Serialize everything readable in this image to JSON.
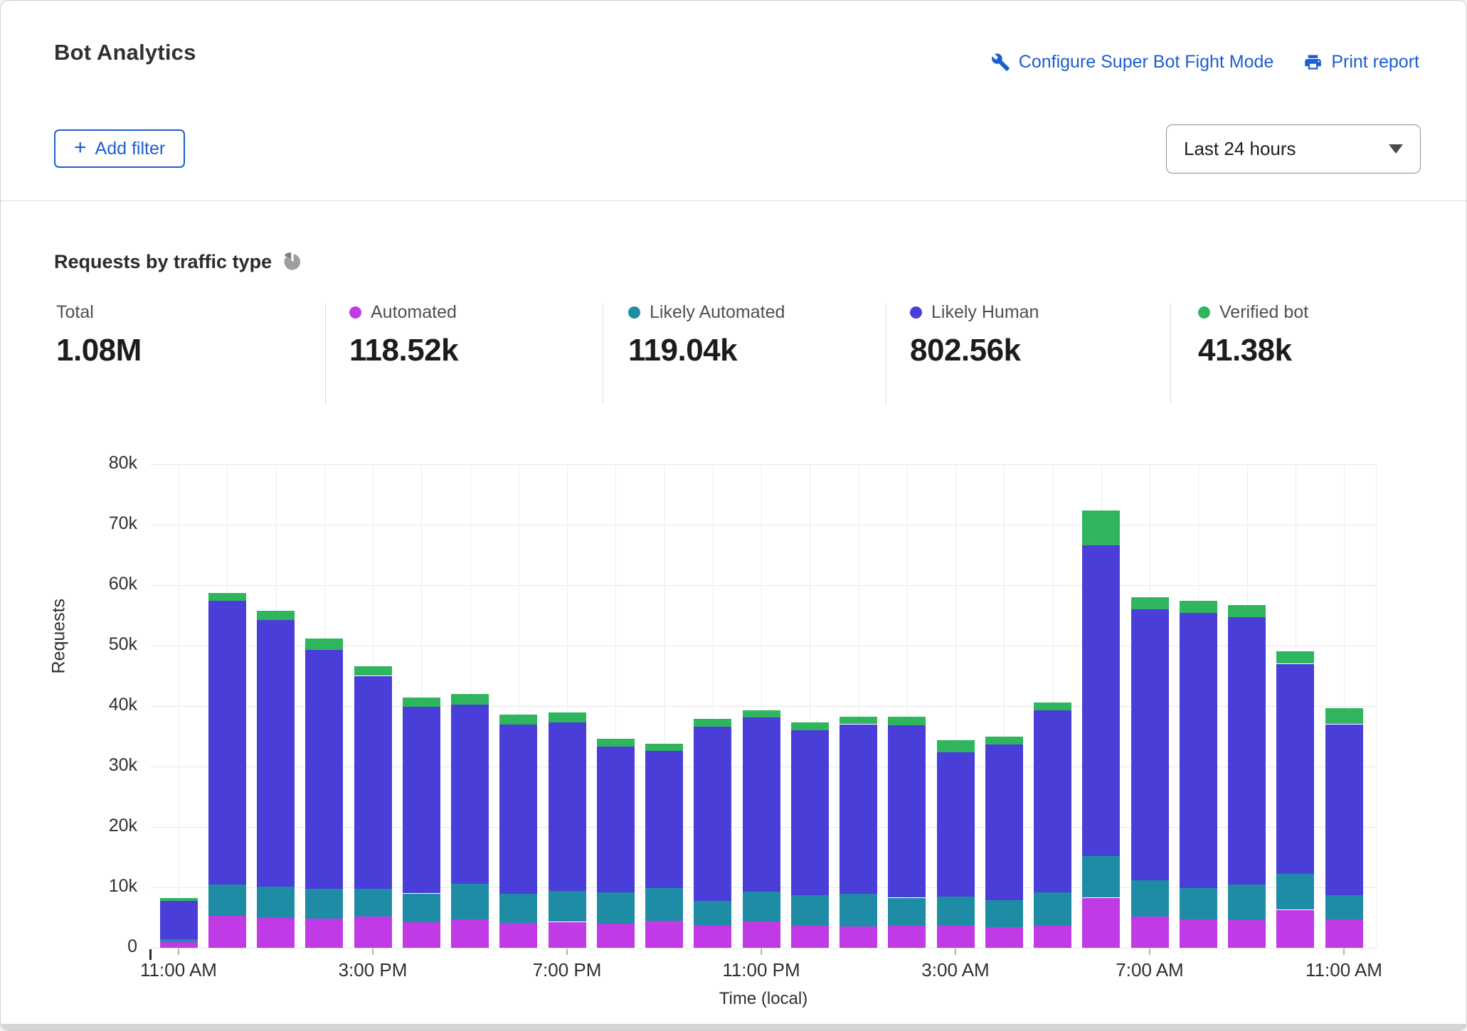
{
  "header": {
    "title": "Bot Analytics",
    "configure_link": "Configure Super Bot Fight Mode",
    "print_link": "Print report",
    "add_filter_label": "Add filter",
    "time_range_value": "Last 24 hours"
  },
  "section": {
    "title": "Requests by traffic type"
  },
  "accent_color": "#1d5dd2",
  "stats": [
    {
      "label": "Total",
      "value": "1.08M",
      "color": null
    },
    {
      "label": "Automated",
      "value": "118.52k",
      "color": "#c03be6"
    },
    {
      "label": "Likely Automated",
      "value": "119.04k",
      "color": "#1e8ca4"
    },
    {
      "label": "Likely Human",
      "value": "802.56k",
      "color": "#4a3ed8"
    },
    {
      "label": "Verified bot",
      "value": "41.38k",
      "color": "#2eb55e"
    }
  ],
  "chart_data": {
    "type": "bar",
    "stacked": true,
    "title": "Requests by traffic type",
    "xlabel": "Time (local)",
    "ylabel": "Requests",
    "ylim": [
      0,
      80000
    ],
    "ytick_step": 10000,
    "ytick_labels": [
      "0",
      "10k",
      "20k",
      "30k",
      "40k",
      "50k",
      "60k",
      "70k",
      "80k"
    ],
    "grid": true,
    "categories": [
      "11:00 AM",
      "12:00 PM",
      "1:00 PM",
      "2:00 PM",
      "3:00 PM",
      "4:00 PM",
      "5:00 PM",
      "6:00 PM",
      "7:00 PM",
      "8:00 PM",
      "9:00 PM",
      "10:00 PM",
      "11:00 PM",
      "12:00 AM",
      "1:00 AM",
      "2:00 AM",
      "3:00 AM",
      "4:00 AM",
      "5:00 AM",
      "6:00 AM",
      "7:00 AM",
      "8:00 AM",
      "9:00 AM",
      "10:00 AM",
      "11:00 AM"
    ],
    "xtick_indices": [
      0,
      4,
      8,
      12,
      16,
      20,
      24
    ],
    "xtick_labels": [
      "11:00 AM",
      "3:00 PM",
      "7:00 PM",
      "11:00 PM",
      "3:00 AM",
      "7:00 AM",
      "11:00 AM"
    ],
    "series": [
      {
        "name": "Automated",
        "color": "#c03be6",
        "values": [
          900,
          5300,
          4900,
          4800,
          5200,
          4300,
          4700,
          4100,
          4300,
          4000,
          4500,
          3800,
          4400,
          3700,
          3500,
          3700,
          3600,
          3400,
          3600,
          8300,
          5200,
          4700,
          4600,
          6300,
          4700
        ]
      },
      {
        "name": "Likely Automated",
        "color": "#1e8ca4",
        "values": [
          500,
          5200,
          5200,
          5000,
          4600,
          4700,
          5900,
          4800,
          5100,
          5200,
          5400,
          4000,
          4900,
          5000,
          5400,
          4600,
          4900,
          4500,
          5600,
          6900,
          6000,
          5200,
          5900,
          5900,
          4000
        ]
      },
      {
        "name": "Likely Human",
        "color": "#4a3ed8",
        "values": [
          6400,
          46900,
          44100,
          39500,
          35200,
          30900,
          29600,
          28000,
          27900,
          24100,
          22700,
          28800,
          28800,
          27300,
          28100,
          28500,
          23800,
          25700,
          30100,
          51400,
          44800,
          45500,
          44200,
          34800,
          28300
        ]
      },
      {
        "name": "Verified bot",
        "color": "#2eb55e",
        "values": [
          400,
          1300,
          1600,
          1900,
          1600,
          1500,
          1800,
          1700,
          1600,
          1300,
          1200,
          1300,
          1200,
          1300,
          1200,
          1400,
          2000,
          1400,
          1300,
          5800,
          2000,
          2000,
          2000,
          2100,
          2600
        ]
      }
    ]
  }
}
